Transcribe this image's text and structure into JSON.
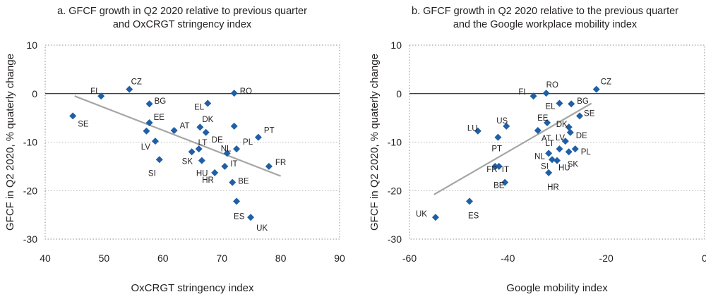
{
  "chart_data": [
    {
      "type": "scatter",
      "title_lines": [
        "a. GFCF growth in Q2 2020 relative to previous quarter",
        "and OxCRGT stringency index"
      ],
      "xlabel": "OxCRGT stringency index",
      "ylabel": "GFCF in Q2 2020, % quaterly change",
      "xlim": [
        40,
        90
      ],
      "ylim": [
        -30,
        10
      ],
      "xticks": [
        40,
        50,
        60,
        70,
        80,
        90
      ],
      "yticks": [
        10,
        0,
        -10,
        -20,
        -30
      ],
      "marker_color": "#1f5fa6",
      "trend_color": "#a6a6a6",
      "trendline": [
        [
          45,
          -0.5
        ],
        [
          80,
          -17
        ]
      ],
      "points": [
        {
          "label": "FI",
          "x": 49.5,
          "y": -0.5
        },
        {
          "label": "CZ",
          "x": 54.3,
          "y": 0.9
        },
        {
          "label": "BG",
          "x": 57.7,
          "y": -2.1
        },
        {
          "label": "EE",
          "x": 57.7,
          "y": -6.0
        },
        {
          "label": "",
          "x": 57.2,
          "y": -7.7
        },
        {
          "label": "LV",
          "x": 58.7,
          "y": -9.8
        },
        {
          "label": "SI",
          "x": 59.4,
          "y": -13.6
        },
        {
          "label": "SE",
          "x": 44.7,
          "y": -4.6
        },
        {
          "label": "AT",
          "x": 61.9,
          "y": -7.6
        },
        {
          "label": "EL",
          "x": 67.6,
          "y": -2.0
        },
        {
          "label": "RO",
          "x": 72.1,
          "y": 0.1
        },
        {
          "label": "DK",
          "x": 66.3,
          "y": -6.9
        },
        {
          "label": "DE",
          "x": 67.3,
          "y": -8.0
        },
        {
          "label": "",
          "x": 72.1,
          "y": -6.7
        },
        {
          "label": "LT",
          "x": 66.1,
          "y": -11.4
        },
        {
          "label": "SK",
          "x": 64.9,
          "y": -12.0
        },
        {
          "label": "HU",
          "x": 66.6,
          "y": -13.8
        },
        {
          "label": "NL",
          "x": 70.9,
          "y": -12.3
        },
        {
          "label": "PL",
          "x": 72.5,
          "y": -11.4
        },
        {
          "label": "PT",
          "x": 76.2,
          "y": -9.0
        },
        {
          "label": "IT",
          "x": 70.5,
          "y": -15.0
        },
        {
          "label": "HR",
          "x": 68.8,
          "y": -16.3
        },
        {
          "label": "BE",
          "x": 71.8,
          "y": -18.3
        },
        {
          "label": "FR",
          "x": 78.0,
          "y": -15.0
        },
        {
          "label": "ES",
          "x": 72.5,
          "y": -22.2
        },
        {
          "label": "UK",
          "x": 74.9,
          "y": -25.5
        }
      ]
    },
    {
      "type": "scatter",
      "title_lines": [
        "b. GFCF growth in Q2 2020 relative to the previous quarter",
        "and the Google workplace mobility index"
      ],
      "xlabel": "Google mobility index",
      "ylabel": "GFCF in Q2 2020, % quaterly change",
      "xlim": [
        -60,
        0
      ],
      "ylim": [
        -30,
        10
      ],
      "xticks": [
        -60,
        -40,
        -20,
        0
      ],
      "yticks": [
        10,
        0,
        -10,
        -20,
        -30
      ],
      "marker_color": "#1f5fa6",
      "trend_color": "#a6a6a6",
      "trendline": [
        [
          -55,
          -20.8
        ],
        [
          -23,
          -2.0
        ]
      ],
      "points": [
        {
          "label": "CZ",
          "x": -22.0,
          "y": 0.9
        },
        {
          "label": "RO",
          "x": -32.2,
          "y": 0.1
        },
        {
          "label": "FI",
          "x": -34.8,
          "y": -0.5
        },
        {
          "label": "EL",
          "x": -29.5,
          "y": -2.0
        },
        {
          "label": "BG",
          "x": -27.1,
          "y": -2.1
        },
        {
          "label": "SE",
          "x": -25.4,
          "y": -4.6
        },
        {
          "label": "EE",
          "x": -32.0,
          "y": -6.0
        },
        {
          "label": "US",
          "x": -40.3,
          "y": -6.7
        },
        {
          "label": "LU",
          "x": -46.1,
          "y": -7.7
        },
        {
          "label": "AT",
          "x": -33.9,
          "y": -7.6
        },
        {
          "label": "DK",
          "x": -27.6,
          "y": -6.9
        },
        {
          "label": "DE",
          "x": -27.3,
          "y": -8.0
        },
        {
          "label": "PT",
          "x": -42.0,
          "y": -9.0
        },
        {
          "label": "LV",
          "x": -28.3,
          "y": -9.8
        },
        {
          "label": "LT",
          "x": -29.5,
          "y": -11.4
        },
        {
          "label": "PL",
          "x": -26.3,
          "y": -11.4
        },
        {
          "label": "NL",
          "x": -31.7,
          "y": -12.3
        },
        {
          "label": "SK",
          "x": -27.6,
          "y": -12.0
        },
        {
          "label": "SI",
          "x": -31.0,
          "y": -13.6
        },
        {
          "label": "HU",
          "x": -30.0,
          "y": -13.8
        },
        {
          "label": "FR",
          "x": -42.6,
          "y": -15.0
        },
        {
          "label": "IT",
          "x": -41.8,
          "y": -15.0
        },
        {
          "label": "HR",
          "x": -31.7,
          "y": -16.3
        },
        {
          "label": "BE",
          "x": -40.6,
          "y": -18.3
        },
        {
          "label": "ES",
          "x": -47.8,
          "y": -22.2
        },
        {
          "label": "UK",
          "x": -54.7,
          "y": -25.5
        }
      ]
    }
  ]
}
